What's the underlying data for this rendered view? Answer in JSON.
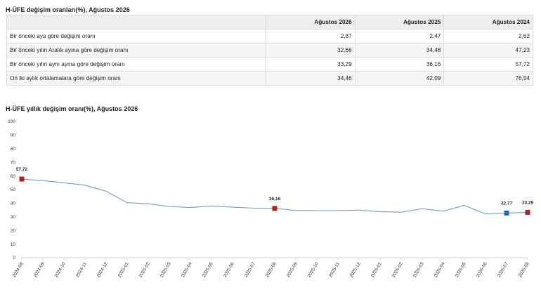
{
  "table": {
    "title": "H-ÜFE değişim oranları(%), Ağustos 2026",
    "headers": [
      "",
      "Ağustos 2026",
      "Ağustos 2025",
      "Ağustos 2024"
    ],
    "rows": [
      [
        "Bir önceki aya göre değişim oranı",
        "2,87",
        "2,47",
        "2,62"
      ],
      [
        "Bir önceki yılın Aralık ayına göre değişim oranı",
        "32,66",
        "34,48",
        "47,23"
      ],
      [
        "Bir önceki yılın aynı ayına göre değişim oranı",
        "33,29",
        "36,16",
        "57,72"
      ],
      [
        "On iki aylık ortalamalara göre değişim oranı",
        "34,46",
        "42,09",
        "76,54"
      ]
    ]
  },
  "chart_data": {
    "type": "line",
    "title": "H-ÜFE yıllık değişim oranı(%), Ağustos 2026",
    "xlabel": "",
    "ylabel": "",
    "ylim": [
      0,
      100
    ],
    "yticks": [
      0,
      10,
      20,
      30,
      40,
      50,
      60,
      70,
      80,
      90,
      100
    ],
    "grid": false,
    "x": [
      "2024-08",
      "2024-09",
      "2024-10",
      "2024-11",
      "2024-12",
      "2025-01",
      "2025-02",
      "2025-03",
      "2025-04",
      "2025-05",
      "2025-06",
      "2025-07",
      "2025-08",
      "2025-09",
      "2025-10",
      "2025-11",
      "2025-12",
      "2026-01",
      "2026-02",
      "2026-03",
      "2026-04",
      "2026-05",
      "2026-06",
      "2026-07",
      "2026-08"
    ],
    "series": [
      {
        "values": [
          57.72,
          56.6,
          55.0,
          53.2,
          48.8,
          40.4,
          39.6,
          37.6,
          36.8,
          37.9,
          37.1,
          36.4,
          36.16,
          34.7,
          34.6,
          34.6,
          34.9,
          33.8,
          33.4,
          35.9,
          34.2,
          38.4,
          32.1,
          32.77,
          33.29
        ],
        "color": "#6f9dc4"
      }
    ],
    "highlights": [
      {
        "x": "2024-08",
        "value": 57.72,
        "label": "57,72",
        "color": "#b22222"
      },
      {
        "x": "2025-08",
        "value": 36.16,
        "label": "36,16",
        "color": "#b22222"
      },
      {
        "x": "2026-07",
        "value": 32.77,
        "label": "32,77",
        "color": "#2b6cb0"
      },
      {
        "x": "2026-08",
        "value": 33.29,
        "label": "33,29",
        "color": "#b22222"
      }
    ]
  }
}
